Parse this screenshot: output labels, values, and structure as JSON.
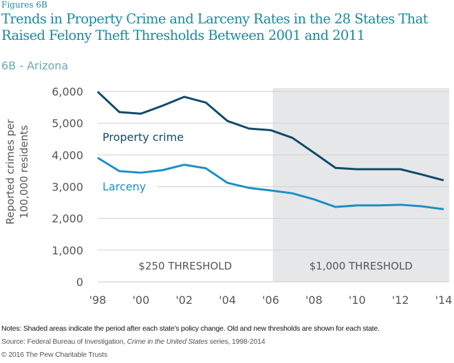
{
  "header": {
    "figure_label": "Figures 6B",
    "title": "Trends in Property Crime and Larceny Rates in the 28 States That Raised Felony Theft Thresholds Between 2001 and 2011",
    "subtitle": "6B - Arizona"
  },
  "colors": {
    "title": "#1a8a9e",
    "subtitle": "#6aa7b8",
    "property_crime": "#0e4a6b",
    "larceny": "#1b8fc4",
    "shading": "#e6e7e9",
    "gridline": "#d4d4d4",
    "axis_text": "#555555"
  },
  "chart_data": {
    "type": "line",
    "title": "6B - Arizona",
    "xlabel": "",
    "ylabel": "Reported crimes per 100,000 residents",
    "x": [
      1998,
      1999,
      2000,
      2001,
      2002,
      2003,
      2004,
      2005,
      2006,
      2007,
      2008,
      2009,
      2010,
      2011,
      2012,
      2013,
      2014
    ],
    "xlim": [
      1998,
      2014
    ],
    "ylim": [
      0,
      6000
    ],
    "x_ticks": [
      1998,
      2000,
      2002,
      2004,
      2006,
      2008,
      2010,
      2012,
      2014
    ],
    "x_tick_labels": [
      "'98",
      "'00",
      "'02",
      "'04",
      "'06",
      "'08",
      "'10",
      "'12",
      "'14"
    ],
    "y_ticks": [
      0,
      1000,
      2000,
      3000,
      4000,
      5000,
      6000
    ],
    "y_tick_labels": [
      "0",
      "1,000",
      "2,000",
      "3,000",
      "4,000",
      "5,000",
      "6,000"
    ],
    "grid": true,
    "series": [
      {
        "name": "Property crime",
        "color": "#0e4a6b",
        "values": [
          5990,
          5350,
          5300,
          5550,
          5830,
          5650,
          5070,
          4830,
          4780,
          4540,
          4070,
          3590,
          3550,
          3550,
          3550,
          3380,
          3200
        ]
      },
      {
        "name": "Larceny",
        "color": "#1b8fc4",
        "values": [
          3910,
          3490,
          3440,
          3520,
          3690,
          3580,
          3120,
          2960,
          2880,
          2790,
          2600,
          2360,
          2410,
          2410,
          2430,
          2380,
          2290
        ]
      }
    ],
    "shaded_period": {
      "start": 2006.1,
      "end": 2014,
      "label": "$1,000 THRESHOLD"
    },
    "unshaded_period": {
      "start": 1998,
      "end": 2006.1,
      "label": "$250 THRESHOLD"
    },
    "legend": "inline-labels"
  },
  "footer": {
    "notes": "Notes: Shaded areas indicate the period after each state’s policy change. Old and new thresholds are shown for each state.",
    "source_prefix": "Source: Federal Bureau of Investigation, ",
    "source_italic": "Crime in the United States",
    "source_suffix": " series, 1998-2014",
    "copyright": "© 2016 The Pew Charitable Trusts"
  }
}
